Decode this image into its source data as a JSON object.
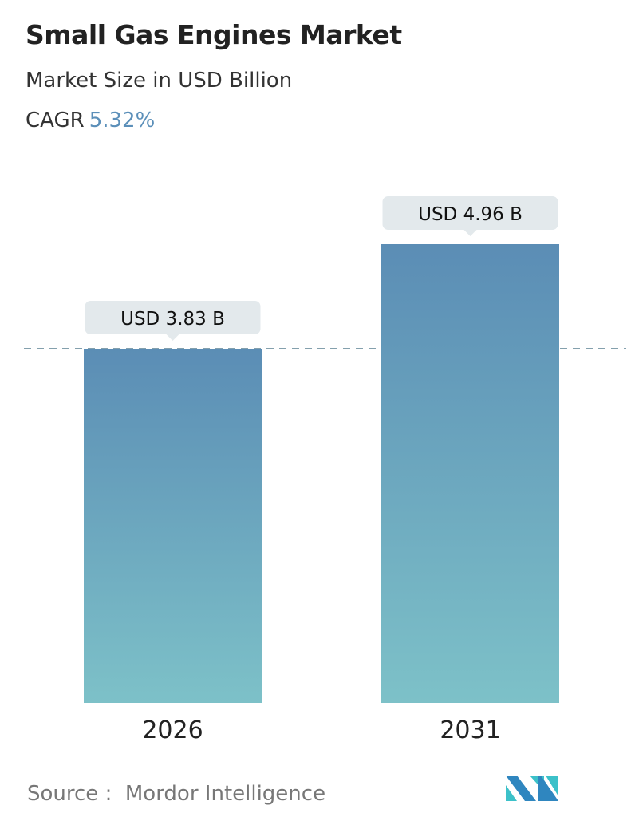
{
  "header": {
    "title": "Small Gas Engines Market",
    "subtitle": "Market Size in USD Billion",
    "cagr_label": "CAGR",
    "cagr_value": "5.32%"
  },
  "chart_data": {
    "type": "bar",
    "title": "Small Gas Engines Market",
    "categories": [
      "2026",
      "2031"
    ],
    "values": [
      3.83,
      4.96
    ],
    "data_labels": [
      "USD 3.83 B",
      "USD 4.96 B"
    ],
    "unit": "USD Billion",
    "ylim": [
      0,
      4.96
    ],
    "grid": false,
    "reference_line": 3.83,
    "colors": {
      "bar_top": "#5b8db5",
      "bar_bottom": "#7dc1c8",
      "label_bg": "#e3e9ec",
      "dash": "#5b8092"
    }
  },
  "footer": {
    "source_label": "Source :",
    "source_value": "Mordor Intelligence"
  }
}
